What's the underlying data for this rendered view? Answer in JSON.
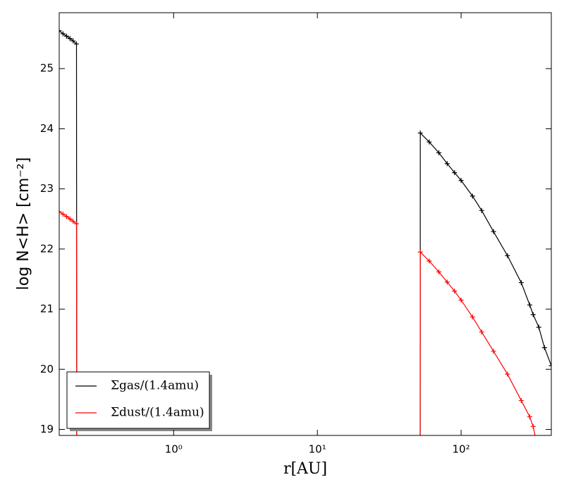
{
  "chart_data": {
    "type": "line",
    "xlabel": "r[AU]",
    "ylabel": "log N<H> [cm⁻²]",
    "x": [
      0.16,
      0.17,
      0.18,
      0.19,
      0.2,
      0.211,
      0.212,
      51.9,
      52,
      60,
      70,
      80,
      90,
      100,
      120,
      139,
      168,
      210,
      262,
      300,
      317,
      347,
      380,
      424
    ],
    "series": [
      {
        "name": "Σgas/(1.4amu)",
        "color": "#000000",
        "values": [
          25.63,
          25.58,
          25.54,
          25.5,
          25.46,
          25.41,
          18.5,
          18.5,
          23.93,
          23.78,
          23.6,
          23.42,
          23.27,
          23.14,
          22.88,
          22.64,
          22.29,
          21.89,
          21.44,
          21.07,
          20.91,
          20.7,
          20.36,
          20.06
        ]
      },
      {
        "name": "Σdust/(1.4amu)",
        "color": "#ff0000",
        "values": [
          22.62,
          22.58,
          22.54,
          22.5,
          22.46,
          22.42,
          18.5,
          18.5,
          21.95,
          21.8,
          21.62,
          21.45,
          21.3,
          21.15,
          20.87,
          20.62,
          20.3,
          19.92,
          19.48,
          19.21,
          19.05,
          18.6,
          null,
          null
        ]
      }
    ],
    "xscale": "log",
    "xlim": [
      0.16,
      424
    ],
    "xticks": [
      {
        "value": 1,
        "label": "10⁰"
      },
      {
        "value": 10,
        "label": "10¹"
      },
      {
        "value": 100,
        "label": "10²"
      }
    ],
    "ylim": [
      18.9,
      25.93
    ],
    "yticks": [
      19,
      20,
      21,
      22,
      23,
      24,
      25
    ],
    "legend": "lower left"
  }
}
